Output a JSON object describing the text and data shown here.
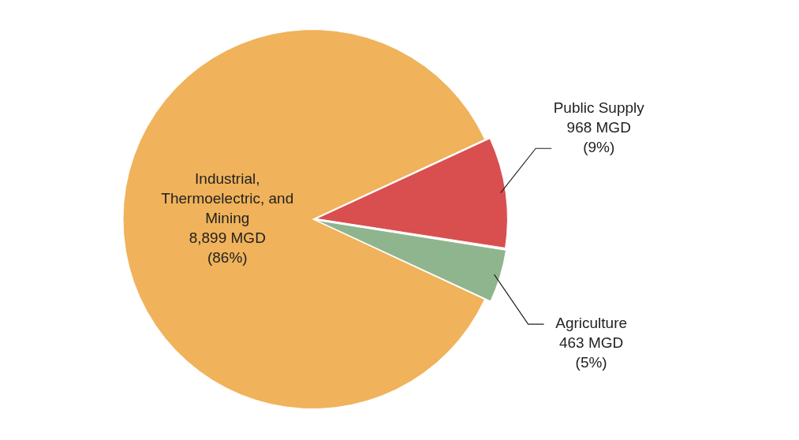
{
  "chart_data": {
    "type": "pie",
    "categories": [
      "Industrial, Thermoelectric, and Mining",
      "Public Supply",
      "Agriculture"
    ],
    "values": [
      8899,
      968,
      463
    ],
    "colors": [
      "#f0b25a",
      "#d94f4f",
      "#8fb58f"
    ],
    "value_labels": [
      "8,899 MGD\n(86%)",
      "968 MGD\n(9%)",
      "463 MGD\n(5%)"
    ],
    "legend": false
  }
}
